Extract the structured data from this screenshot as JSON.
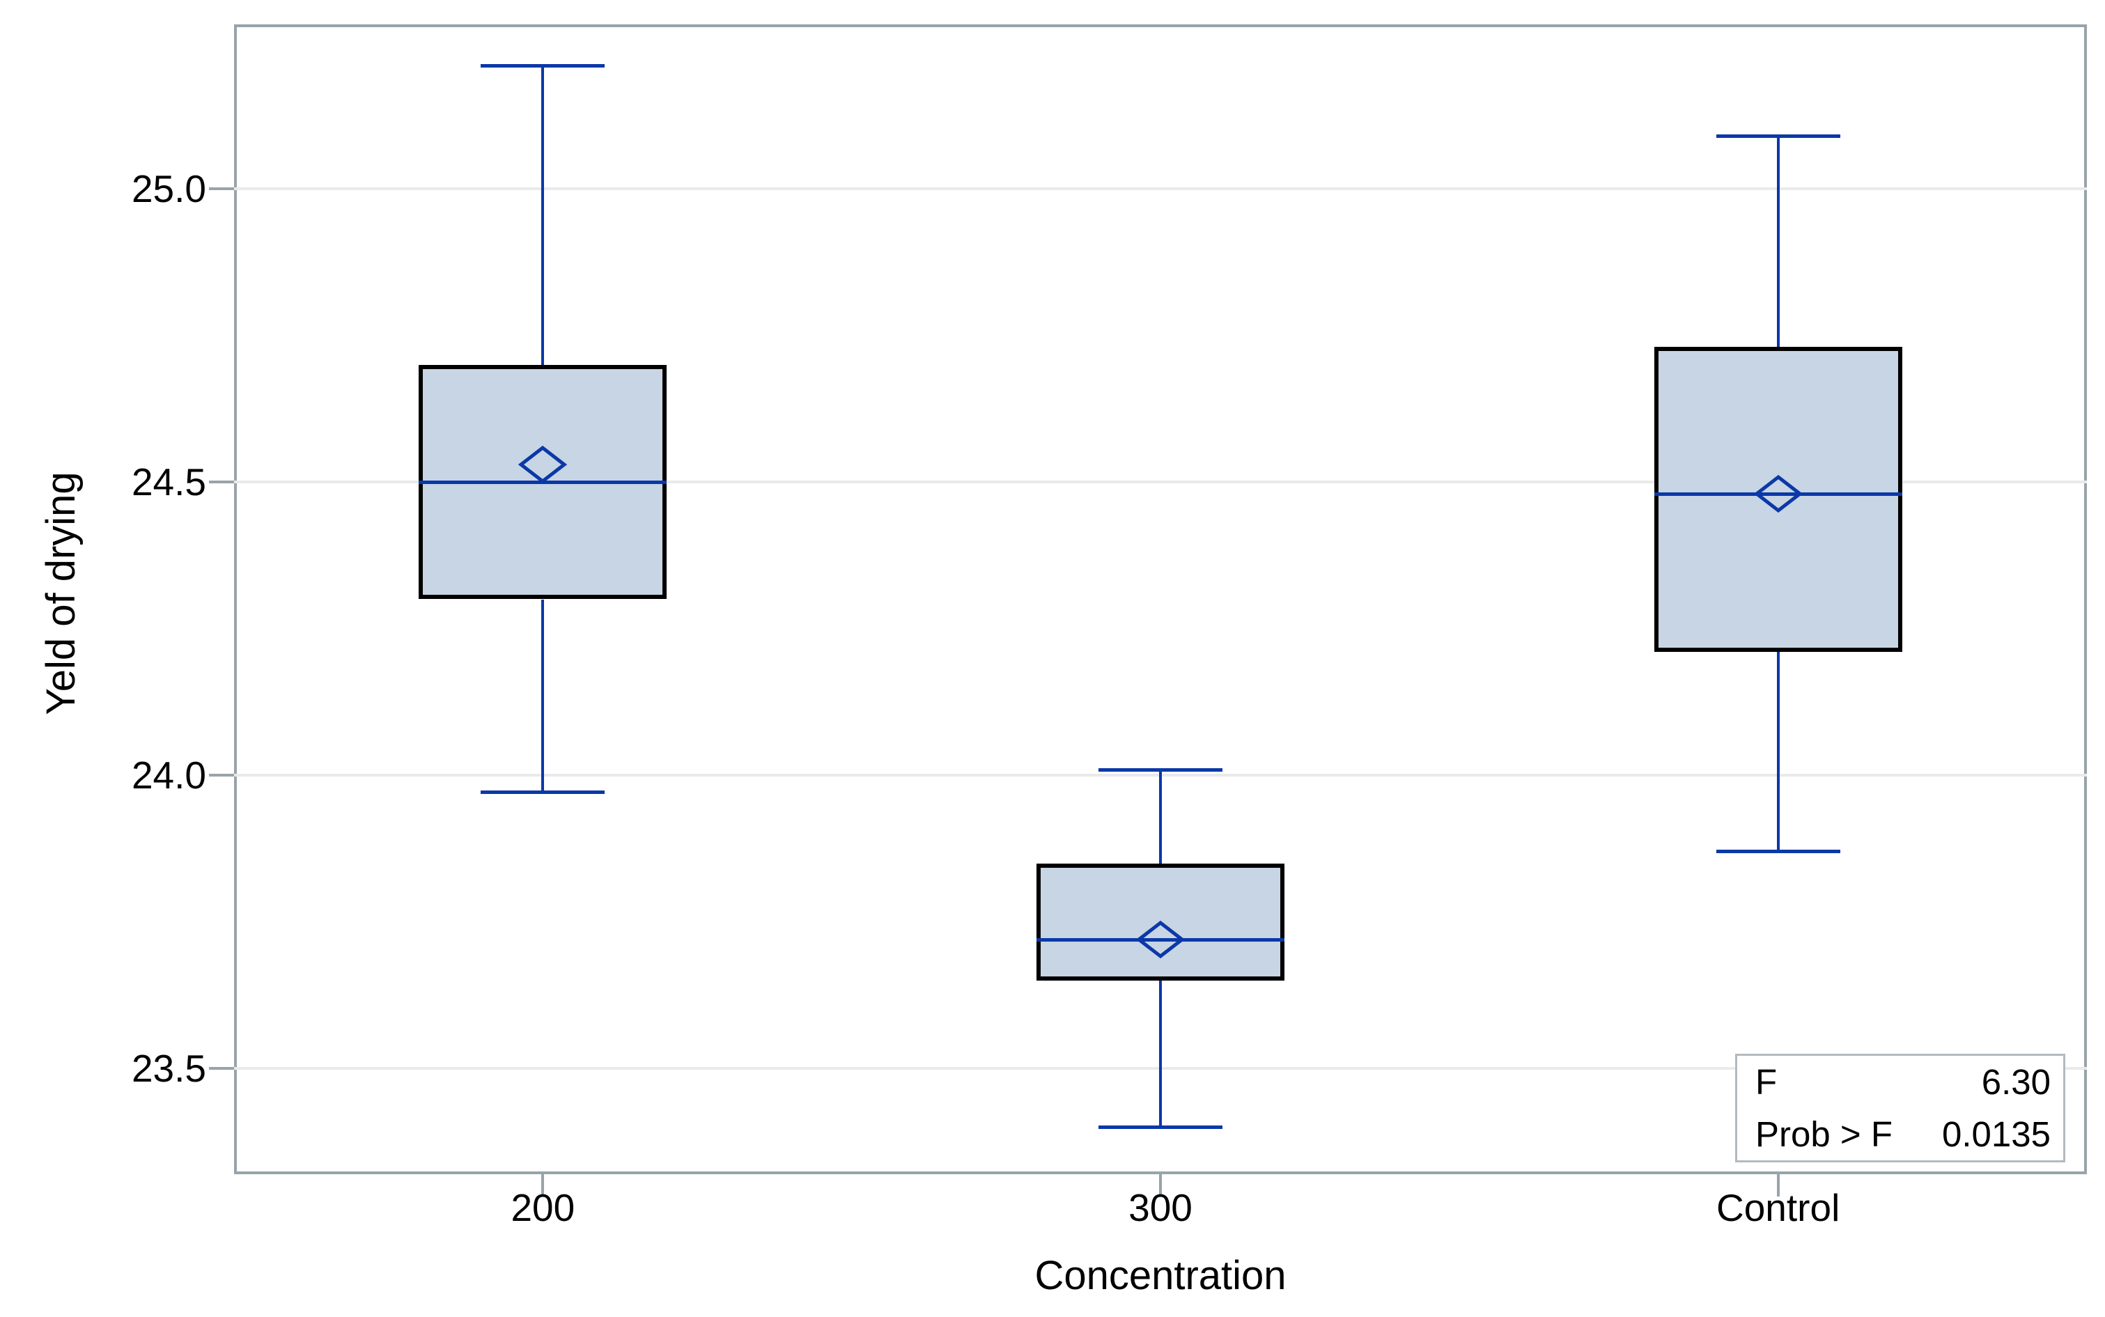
{
  "chart_data": {
    "type": "box",
    "title": "",
    "xlabel": "Concentration",
    "ylabel": "Yeld of drying",
    "categories": [
      "200",
      "300",
      "Control"
    ],
    "yticks": [
      {
        "value": 25.0,
        "label": "25.0"
      },
      {
        "value": 24.5,
        "label": "24.5"
      },
      {
        "value": 24.0,
        "label": "24.0"
      },
      {
        "value": 23.5,
        "label": "23.5"
      }
    ],
    "ylim": [
      23.32,
      25.28
    ],
    "grid": "horizontal-light",
    "legend": "none",
    "boxes": [
      {
        "category": "200",
        "whisker_low": 23.97,
        "q1": 24.3,
        "median": 24.5,
        "mean": 24.53,
        "q3": 24.7,
        "whisker_high": 25.21
      },
      {
        "category": "300",
        "whisker_low": 23.4,
        "q1": 23.65,
        "median": 23.72,
        "mean": 23.72,
        "q3": 23.85,
        "whisker_high": 24.01
      },
      {
        "category": "Control",
        "whisker_low": 23.87,
        "q1": 24.21,
        "median": 24.48,
        "mean": 24.48,
        "q3": 24.73,
        "whisker_high": 25.09
      }
    ],
    "inset_stats": {
      "rows": [
        {
          "label": "F",
          "value": "6.30"
        },
        {
          "label": "Prob > F",
          "value": "0.0135"
        }
      ]
    },
    "colors": {
      "box_fill": "#c7d5e4",
      "box_border": "#000000",
      "line_blue": "#0b38a8",
      "frame_gray": "#99a3a9",
      "grid_gray": "#e9eaea",
      "stats_border": "#b3babf",
      "text": "#000000"
    }
  }
}
